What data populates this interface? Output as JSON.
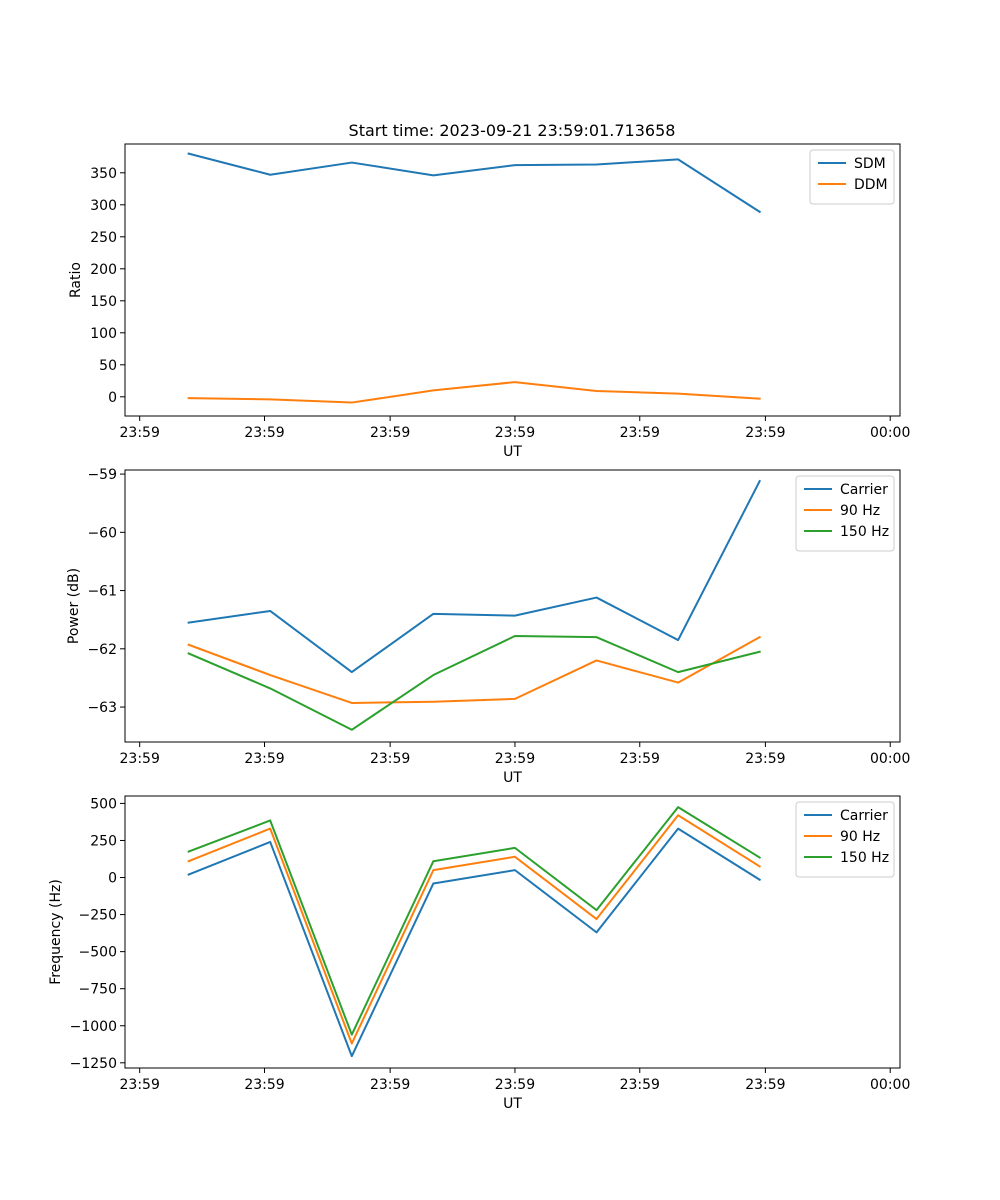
{
  "figure": {
    "title": "Start time: 2023-09-21 23:59:01.713658"
  },
  "colors": {
    "blue": "#1f77b4",
    "orange": "#ff7f0e",
    "green": "#2ca02c",
    "axes": "#000000",
    "background": "#ffffff",
    "legend_border": "#cccccc"
  },
  "chart_data": [
    {
      "type": "line",
      "title": "Start time: 2023-09-21 23:59:01.713658",
      "xlabel": "UT",
      "ylabel": "Ratio",
      "x_tick_labels": [
        "23:59",
        "23:59",
        "23:59",
        "23:59",
        "23:59",
        "23:59",
        "00:00"
      ],
      "x_index_range": [
        -0.75,
        8.25
      ],
      "x": [
        0,
        1,
        2,
        3,
        4,
        5,
        6,
        7
      ],
      "ylim": [
        -30,
        395
      ],
      "y_ticks": [
        0,
        50,
        100,
        150,
        200,
        250,
        300,
        350
      ],
      "legend_position": "top-right",
      "grid": false,
      "series": [
        {
          "name": "SDM",
          "color": "#1f77b4",
          "values": [
            380,
            347,
            366,
            346,
            362,
            363,
            371,
            289
          ]
        },
        {
          "name": "DDM",
          "color": "#ff7f0e",
          "values": [
            -2,
            -4,
            -9,
            10,
            23,
            9,
            5,
            -3
          ]
        }
      ]
    },
    {
      "type": "line",
      "title": "",
      "xlabel": "UT",
      "ylabel": "Power (dB)",
      "x_tick_labels": [
        "23:59",
        "23:59",
        "23:59",
        "23:59",
        "23:59",
        "23:59",
        "00:00"
      ],
      "x_index_range": [
        -0.75,
        8.25
      ],
      "x": [
        0,
        1,
        2,
        3,
        4,
        5,
        6,
        7
      ],
      "ylim": [
        -63.6,
        -58.93
      ],
      "y_ticks": [
        -63,
        -62,
        -61,
        -60,
        -59
      ],
      "legend_position": "top-right",
      "grid": false,
      "series": [
        {
          "name": "Carrier",
          "color": "#1f77b4",
          "values": [
            -61.55,
            -61.35,
            -62.4,
            -61.4,
            -61.43,
            -61.12,
            -61.85,
            -59.12
          ]
        },
        {
          "name": "90 Hz",
          "color": "#ff7f0e",
          "values": [
            -61.93,
            -62.45,
            -62.93,
            -62.91,
            -62.86,
            -62.2,
            -62.58,
            -61.8
          ]
        },
        {
          "name": "150 Hz",
          "color": "#2ca02c",
          "values": [
            -62.08,
            -62.68,
            -63.39,
            -62.45,
            -61.78,
            -61.8,
            -62.4,
            -62.05
          ]
        }
      ]
    },
    {
      "type": "line",
      "title": "",
      "xlabel": "UT",
      "ylabel": "Frequency (Hz)",
      "x_tick_labels": [
        "23:59",
        "23:59",
        "23:59",
        "23:59",
        "23:59",
        "23:59",
        "00:00"
      ],
      "x_index_range": [
        -0.75,
        8.25
      ],
      "x": [
        0,
        1,
        2,
        3,
        4,
        5,
        6,
        7
      ],
      "ylim": [
        -1285,
        550
      ],
      "y_ticks": [
        -1250,
        -1000,
        -750,
        -500,
        -250,
        0,
        250,
        500
      ],
      "legend_position": "top-right",
      "grid": false,
      "series": [
        {
          "name": "Carrier",
          "color": "#1f77b4",
          "values": [
            20,
            240,
            -1205,
            -40,
            50,
            -370,
            330,
            -15
          ]
        },
        {
          "name": "90 Hz",
          "color": "#ff7f0e",
          "values": [
            110,
            330,
            -1120,
            50,
            140,
            -280,
            420,
            75
          ]
        },
        {
          "name": "150 Hz",
          "color": "#2ca02c",
          "values": [
            175,
            385,
            -1060,
            110,
            200,
            -220,
            475,
            135
          ]
        }
      ]
    }
  ]
}
